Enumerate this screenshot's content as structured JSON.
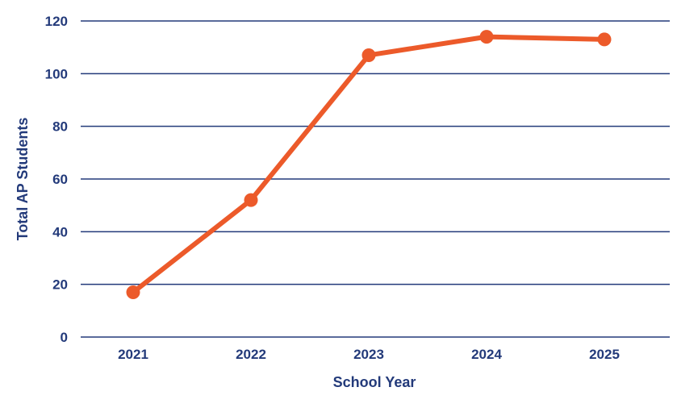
{
  "chart_data": {
    "type": "line",
    "categories": [
      "2021",
      "2022",
      "2023",
      "2024",
      "2025"
    ],
    "series": [
      {
        "values": [
          17,
          52,
          107,
          114,
          113
        ]
      }
    ],
    "xlabel": "School Year",
    "ylabel": "Total AP Students",
    "ylim": [
      0,
      120
    ],
    "yticks": [
      "0",
      "20",
      "40",
      "60",
      "80",
      "100",
      "120"
    ],
    "grid": true,
    "legend": "none",
    "colors": {
      "line": "#ec5a2a",
      "grid": "#233a7a",
      "text": "#233a7a"
    }
  }
}
